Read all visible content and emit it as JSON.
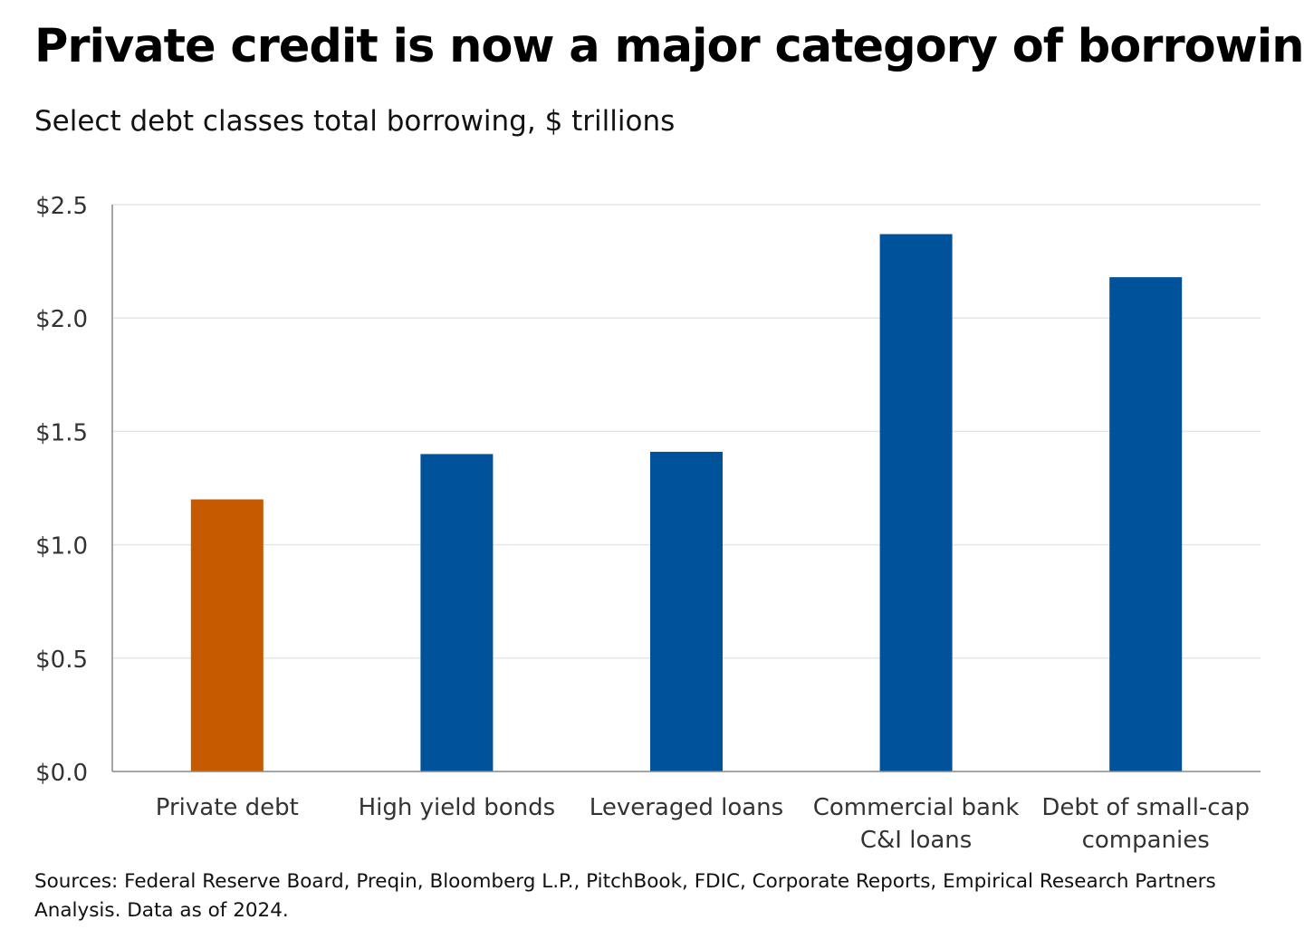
{
  "title": "Private credit is now a major category of borrowing",
  "subtitle": "Select debt classes total borrowing, $ trillions",
  "source": "Sources: Federal Reserve Board, Preqin, Bloomberg L.P., PitchBook, FDIC, Corporate Reports, Empirical Research Partners Analysis. Data as of 2024.",
  "colors": {
    "highlight": "#c55a00",
    "bar": "#00529b",
    "grid": "#e6e6e6",
    "axis": "#888888",
    "tick_text": "#333333"
  },
  "chart_data": {
    "type": "bar",
    "title": "Private credit is now a major category of borrowing",
    "subtitle": "Select debt classes total borrowing, $ trillions",
    "categories": [
      [
        "Private debt"
      ],
      [
        "High yield bonds"
      ],
      [
        "Leveraged loans"
      ],
      [
        "Commercial bank",
        "C&I loans"
      ],
      [
        "Debt of small-cap",
        "companies"
      ]
    ],
    "values": [
      1.2,
      1.4,
      1.41,
      2.37,
      2.18
    ],
    "bar_colors": [
      "highlight",
      "bar",
      "bar",
      "bar",
      "bar"
    ],
    "ylim": [
      0,
      2.5
    ],
    "yticks": [
      0,
      0.5,
      1.0,
      1.5,
      2.0,
      2.5
    ],
    "ytick_labels": [
      "$0.0",
      "$0.5",
      "$1.0",
      "$1.5",
      "$2.0",
      "$2.5"
    ],
    "grid": true,
    "legend": "none"
  }
}
